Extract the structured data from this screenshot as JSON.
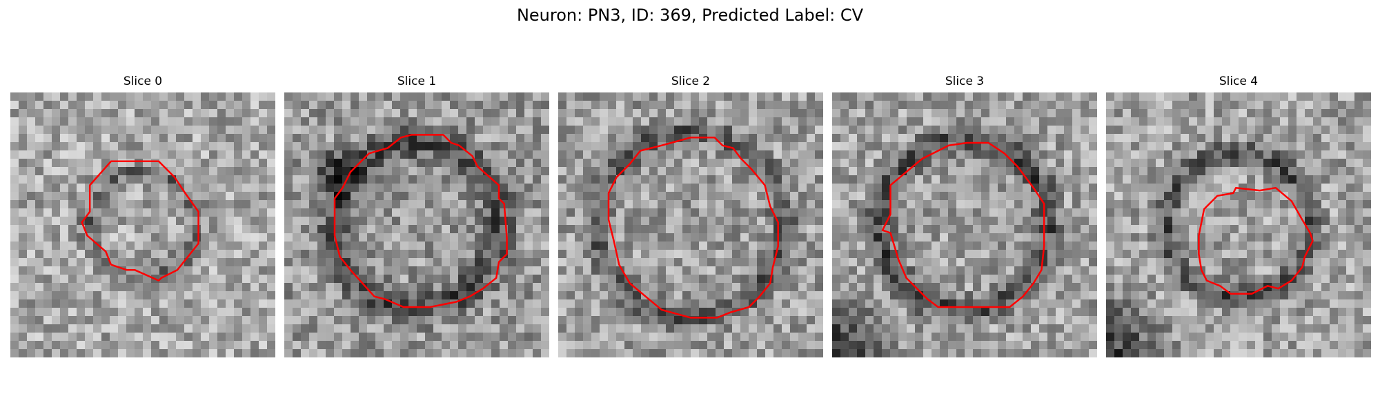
{
  "figure": {
    "title": "Neuron: PN3, ID: 369, Predicted Label: CV"
  },
  "outline_color": "#ff0000",
  "panels": [
    {
      "title": "Slice 0",
      "image": "grayscale electron micrograph patch with a small dark ring near center",
      "seed": 11,
      "base": 0.66,
      "ring_radius": 0.2,
      "ring_width": 0.06,
      "ring_dark": 0.26,
      "outline": [
        [
          0.38,
          0.26
        ],
        [
          0.56,
          0.26
        ],
        [
          0.62,
          0.32
        ],
        [
          0.66,
          0.38
        ],
        [
          0.71,
          0.45
        ],
        [
          0.71,
          0.57
        ],
        [
          0.67,
          0.62
        ],
        [
          0.63,
          0.67
        ],
        [
          0.57,
          0.7
        ],
        [
          0.56,
          0.71
        ],
        [
          0.47,
          0.67
        ],
        [
          0.44,
          0.67
        ],
        [
          0.38,
          0.65
        ],
        [
          0.36,
          0.6
        ],
        [
          0.29,
          0.54
        ],
        [
          0.27,
          0.49
        ],
        [
          0.3,
          0.45
        ],
        [
          0.3,
          0.35
        ]
      ]
    },
    {
      "title": "Slice 1",
      "image": "grayscale electron micrograph patch with a large dark ring and dark blob at left",
      "seed": 23,
      "base": 0.6,
      "ring_radius": 0.31,
      "ring_width": 0.09,
      "ring_dark": 0.33,
      "outline": [
        [
          0.44,
          0.17
        ],
        [
          0.48,
          0.16
        ],
        [
          0.6,
          0.16
        ],
        [
          0.63,
          0.19
        ],
        [
          0.66,
          0.2
        ],
        [
          0.71,
          0.24
        ],
        [
          0.73,
          0.28
        ],
        [
          0.81,
          0.35
        ],
        [
          0.81,
          0.4
        ],
        [
          0.83,
          0.42
        ],
        [
          0.84,
          0.55
        ],
        [
          0.84,
          0.61
        ],
        [
          0.81,
          0.64
        ],
        [
          0.8,
          0.7
        ],
        [
          0.75,
          0.74
        ],
        [
          0.7,
          0.77
        ],
        [
          0.65,
          0.79
        ],
        [
          0.55,
          0.81
        ],
        [
          0.45,
          0.81
        ],
        [
          0.38,
          0.78
        ],
        [
          0.34,
          0.77
        ],
        [
          0.25,
          0.67
        ],
        [
          0.21,
          0.62
        ],
        [
          0.19,
          0.54
        ],
        [
          0.19,
          0.4
        ],
        [
          0.22,
          0.36
        ],
        [
          0.25,
          0.3
        ],
        [
          0.32,
          0.23
        ],
        [
          0.39,
          0.21
        ]
      ]
    },
    {
      "title": "Slice 2",
      "image": "grayscale electron micrograph patch with a large dark ring and dark streaks",
      "seed": 37,
      "base": 0.62,
      "ring_radius": 0.35,
      "ring_width": 0.07,
      "ring_dark": 0.3,
      "outline": [
        [
          0.39,
          0.2
        ],
        [
          0.5,
          0.17
        ],
        [
          0.59,
          0.17
        ],
        [
          0.62,
          0.2
        ],
        [
          0.66,
          0.21
        ],
        [
          0.69,
          0.25
        ],
        [
          0.73,
          0.29
        ],
        [
          0.78,
          0.35
        ],
        [
          0.8,
          0.43
        ],
        [
          0.83,
          0.49
        ],
        [
          0.83,
          0.58
        ],
        [
          0.81,
          0.66
        ],
        [
          0.8,
          0.72
        ],
        [
          0.76,
          0.77
        ],
        [
          0.72,
          0.81
        ],
        [
          0.65,
          0.83
        ],
        [
          0.6,
          0.85
        ],
        [
          0.5,
          0.85
        ],
        [
          0.39,
          0.82
        ],
        [
          0.33,
          0.77
        ],
        [
          0.27,
          0.72
        ],
        [
          0.23,
          0.65
        ],
        [
          0.21,
          0.56
        ],
        [
          0.19,
          0.48
        ],
        [
          0.19,
          0.38
        ],
        [
          0.22,
          0.32
        ],
        [
          0.27,
          0.27
        ],
        [
          0.31,
          0.22
        ]
      ]
    },
    {
      "title": "Slice 3",
      "image": "grayscale electron micrograph patch with a ringed object and dark corner at lower left",
      "seed": 53,
      "base": 0.63,
      "ring_radius": 0.32,
      "ring_width": 0.08,
      "ring_dark": 0.35,
      "outline": [
        [
          0.4,
          0.22
        ],
        [
          0.44,
          0.2
        ],
        [
          0.51,
          0.19
        ],
        [
          0.59,
          0.19
        ],
        [
          0.65,
          0.23
        ],
        [
          0.7,
          0.28
        ],
        [
          0.76,
          0.36
        ],
        [
          0.8,
          0.42
        ],
        [
          0.8,
          0.5
        ],
        [
          0.8,
          0.58
        ],
        [
          0.79,
          0.67
        ],
        [
          0.76,
          0.72
        ],
        [
          0.72,
          0.77
        ],
        [
          0.67,
          0.81
        ],
        [
          0.55,
          0.81
        ],
        [
          0.4,
          0.81
        ],
        [
          0.36,
          0.78
        ],
        [
          0.28,
          0.7
        ],
        [
          0.25,
          0.63
        ],
        [
          0.22,
          0.53
        ],
        [
          0.19,
          0.52
        ],
        [
          0.22,
          0.46
        ],
        [
          0.22,
          0.35
        ],
        [
          0.28,
          0.3
        ],
        [
          0.34,
          0.25
        ]
      ]
    },
    {
      "title": "Slice 4",
      "image": "grayscale electron micrograph patch with a bright center inside a dark ring and dark corner at lower left",
      "seed": 71,
      "base": 0.64,
      "ring_radius": 0.27,
      "ring_width": 0.07,
      "ring_dark": 0.34,
      "outline": [
        [
          0.37,
          0.44
        ],
        [
          0.42,
          0.39
        ],
        [
          0.48,
          0.38
        ],
        [
          0.49,
          0.36
        ],
        [
          0.58,
          0.37
        ],
        [
          0.64,
          0.36
        ],
        [
          0.7,
          0.41
        ],
        [
          0.74,
          0.48
        ],
        [
          0.77,
          0.53
        ],
        [
          0.78,
          0.56
        ],
        [
          0.75,
          0.62
        ],
        [
          0.74,
          0.66
        ],
        [
          0.7,
          0.71
        ],
        [
          0.65,
          0.74
        ],
        [
          0.61,
          0.73
        ],
        [
          0.55,
          0.76
        ],
        [
          0.47,
          0.76
        ],
        [
          0.43,
          0.73
        ],
        [
          0.38,
          0.71
        ],
        [
          0.36,
          0.67
        ],
        [
          0.35,
          0.61
        ],
        [
          0.35,
          0.54
        ]
      ]
    }
  ]
}
